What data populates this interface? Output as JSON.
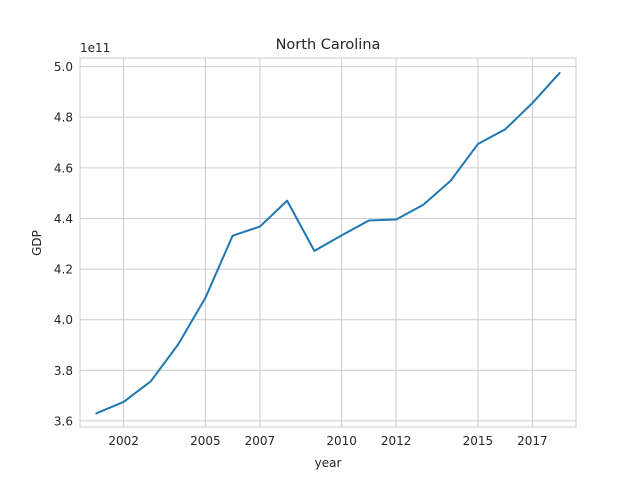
{
  "chart_data": {
    "type": "line",
    "title": "North Carolina",
    "xlabel": "year",
    "ylabel": "GDP",
    "y_offset_text": "1e11",
    "y_scale": 100000000000.0,
    "xlim": [
      2000.4,
      2018.6
    ],
    "ylim": [
      3.576,
      5.034
    ],
    "x_ticks": [
      2002,
      2005,
      2007,
      2010,
      2012,
      2015,
      2017
    ],
    "x_tick_labels": [
      "2002",
      "2005",
      "2007",
      "2010",
      "2012",
      "2015",
      "2017"
    ],
    "y_ticks": [
      3.6,
      3.8,
      4.0,
      4.2,
      4.4,
      4.6,
      4.8,
      5.0
    ],
    "y_tick_labels": [
      "3.6",
      "3.8",
      "4.0",
      "4.2",
      "4.4",
      "4.6",
      "4.8",
      "5.0"
    ],
    "grid": true,
    "series": [
      {
        "color": "#1f77b4",
        "x": [
          2001,
          2002,
          2003,
          2004,
          2005,
          2006,
          2007,
          2008,
          2009,
          2010,
          2011,
          2012,
          2013,
          2014,
          2015,
          2016,
          2017,
          2018
        ],
        "values": [
          3.63,
          3.675,
          3.757,
          3.902,
          4.086,
          4.332,
          4.368,
          4.47,
          4.272,
          4.333,
          4.392,
          4.396,
          4.454,
          4.549,
          4.694,
          4.752,
          4.856,
          4.975
        ]
      }
    ]
  }
}
